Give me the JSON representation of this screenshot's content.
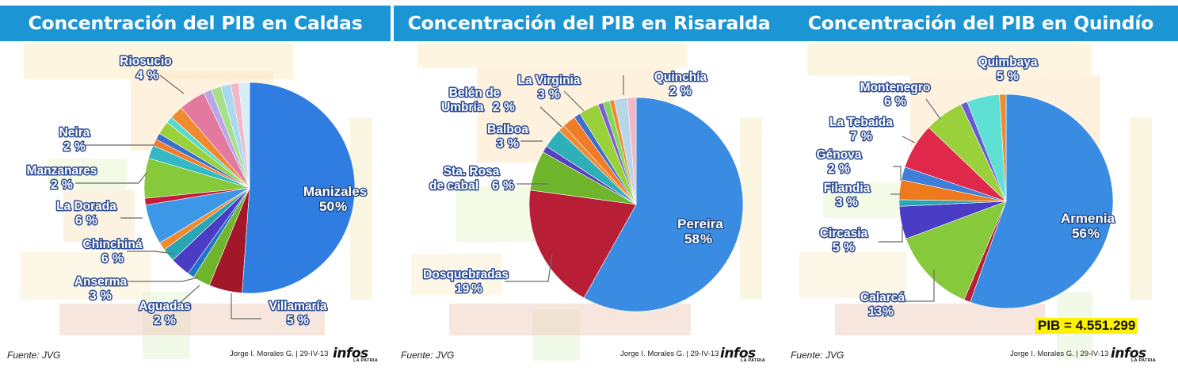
{
  "panels": [
    {
      "title": "Concentración del PIB en Caldas",
      "source": "Fuente: JVG",
      "author": "Jorge I. Morales G. | 29-IV-13",
      "logo": "infos",
      "logo_sub": "LA PATRIA",
      "total": ""
    },
    {
      "title": "Concentración del PIB en Risaralda",
      "source": "Fuente: JVG",
      "author": "Jorge I. Morales G. | 29-IV-13",
      "logo": "infos",
      "logo_sub": "LA PATRIA",
      "total": ""
    },
    {
      "title": "Concentración del PIB en Quindío",
      "source": "Fuente: JVG",
      "author": "Jorge I. Morales G. | 29-IV-13",
      "logo": "infos",
      "logo_sub": "LA PATRIA",
      "total": "PIB = 4.551.299"
    }
  ],
  "chart_data": [
    {
      "type": "pie",
      "title": "Concentración del PIB en Caldas",
      "labeled_slices": [
        {
          "name": "Manizales",
          "value": 50
        },
        {
          "name": "Villamaría",
          "value": 5
        },
        {
          "name": "Aguadas",
          "value": 2
        },
        {
          "name": "Anserma",
          "value": 3
        },
        {
          "name": "Chinchiná",
          "value": 6
        },
        {
          "name": "La Dorada",
          "value": 6
        },
        {
          "name": "Manzanares",
          "value": 2
        },
        {
          "name": "Neira",
          "value": 2
        },
        {
          "name": "Riosucio",
          "value": 4
        }
      ],
      "slices": [
        {
          "key": "Manizales",
          "value": 50,
          "color": "#2f7de1"
        },
        {
          "key": "Villamaría",
          "value": 5,
          "color": "#a3172b"
        },
        {
          "key": "",
          "value": 2.6,
          "color": "#6fb52c"
        },
        {
          "key": "",
          "value": 1,
          "color": "#1e73c8"
        },
        {
          "key": "Anserma",
          "value": 3,
          "color": "#4b3cc4"
        },
        {
          "key": "Aguadas",
          "value": 2,
          "color": "#2aa5b3"
        },
        {
          "key": "",
          "value": 1.2,
          "color": "#f08a2e"
        },
        {
          "key": "Chinchiná",
          "value": 6,
          "color": "#3c97e6"
        },
        {
          "key": "",
          "value": 1,
          "color": "#c51b3a"
        },
        {
          "key": "La Dorada",
          "value": 6,
          "color": "#86c93b"
        },
        {
          "key": "Manzanares",
          "value": 2,
          "color": "#35b8c6"
        },
        {
          "key": "",
          "value": 1,
          "color": "#f07c2a"
        },
        {
          "key": "",
          "value": 1,
          "color": "#3a6fd0"
        },
        {
          "key": "Neira",
          "value": 2,
          "color": "#9ad13a"
        },
        {
          "key": "",
          "value": 1,
          "color": "#5ad8d0"
        },
        {
          "key": "",
          "value": 2,
          "color": "#f08a2e"
        },
        {
          "key": "Riosucio",
          "value": 4,
          "color": "#e27aa0"
        },
        {
          "key": "",
          "value": 1.2,
          "color": "#b9a6e6"
        },
        {
          "key": "",
          "value": 1.5,
          "color": "#a8e08a"
        },
        {
          "key": "",
          "value": 1.5,
          "color": "#a9d8f0"
        },
        {
          "key": "",
          "value": 1.2,
          "color": "#f2b8c6"
        },
        {
          "key": "",
          "value": 1.6,
          "color": "#d7eef9"
        }
      ]
    },
    {
      "type": "pie",
      "title": "Concentración del PIB en Risaralda",
      "labeled_slices": [
        {
          "name": "Pereira",
          "value": 58
        },
        {
          "name": "Dosquebradas",
          "value": 19
        },
        {
          "name": "Sta. Rosa de cabal",
          "value": 6
        },
        {
          "name": "Balboa",
          "value": 3
        },
        {
          "name": "Belén de Umbría",
          "value": 2
        },
        {
          "name": "La Virginia",
          "value": 3
        },
        {
          "name": "Quinchía",
          "value": 2
        }
      ],
      "slices": [
        {
          "key": "Pereira",
          "value": 58,
          "color": "#3a8ce3"
        },
        {
          "key": "Dosquebradas",
          "value": 19,
          "color": "#b81f36"
        },
        {
          "key": "Sta. Rosa de cabal",
          "value": 6,
          "color": "#6fb52c"
        },
        {
          "key": "",
          "value": 1,
          "color": "#5a3fc0"
        },
        {
          "key": "Balboa",
          "value": 3,
          "color": "#2fb0b8"
        },
        {
          "key": "",
          "value": 1,
          "color": "#f08a2e"
        },
        {
          "key": "Belén de Umbría",
          "value": 2,
          "color": "#f07c2a"
        },
        {
          "key": "",
          "value": 1,
          "color": "#3a6fd0"
        },
        {
          "key": "La Virginia",
          "value": 3,
          "color": "#9ad13a"
        },
        {
          "key": "",
          "value": 0.8,
          "color": "#7c5fd0"
        },
        {
          "key": "",
          "value": 1,
          "color": "#7ed957"
        },
        {
          "key": "",
          "value": 0.7,
          "color": "#f08a2e"
        },
        {
          "key": "Quinchía",
          "value": 2,
          "color": "#b7d6ea"
        },
        {
          "key": "",
          "value": 1.3,
          "color": "#f2b8c6"
        }
      ]
    },
    {
      "type": "pie",
      "title": "Concentración del PIB en Quindío",
      "labeled_slices": [
        {
          "name": "Armenia",
          "value": 56
        },
        {
          "name": "Calarcá",
          "value": 13
        },
        {
          "name": "Circasia",
          "value": 5
        },
        {
          "name": "Filandia",
          "value": 3
        },
        {
          "name": "Génova",
          "value": 2
        },
        {
          "name": "La Tebaida",
          "value": 7
        },
        {
          "name": "Montenegro",
          "value": 6
        },
        {
          "name": "Quimbaya",
          "value": 5
        }
      ],
      "slices": [
        {
          "key": "Armenia",
          "value": 56,
          "color": "#3a8ce3"
        },
        {
          "key": "",
          "value": 1,
          "color": "#b81f36"
        },
        {
          "key": "Calarcá",
          "value": 13,
          "color": "#86c93b"
        },
        {
          "key": "Circasia",
          "value": 5,
          "color": "#4b3cc4"
        },
        {
          "key": "",
          "value": 1,
          "color": "#2aa5b3"
        },
        {
          "key": "Filandia",
          "value": 3,
          "color": "#ef7a1e"
        },
        {
          "key": "Génova",
          "value": 2,
          "color": "#3d7fd9"
        },
        {
          "key": "La Tebaida",
          "value": 7,
          "color": "#e0294a"
        },
        {
          "key": "Montenegro",
          "value": 6,
          "color": "#9ad13a"
        },
        {
          "key": "",
          "value": 1,
          "color": "#6a58d6"
        },
        {
          "key": "Quimbaya",
          "value": 5,
          "color": "#5fe0d4"
        },
        {
          "key": "",
          "value": 1,
          "color": "#f08a2e"
        }
      ]
    }
  ]
}
